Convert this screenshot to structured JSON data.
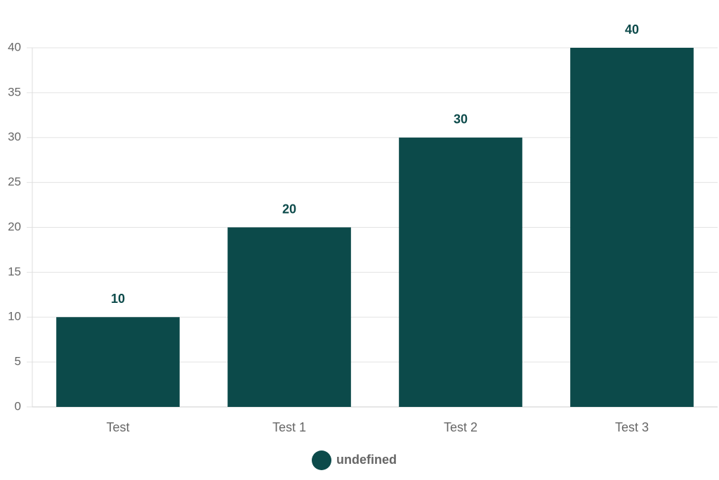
{
  "chart_data": {
    "type": "bar",
    "categories": [
      "Test",
      "Test 1",
      "Test 2",
      "Test 3"
    ],
    "series": [
      {
        "name": "undefined",
        "color": "#0c4a4a",
        "values": [
          10,
          20,
          30,
          40
        ]
      }
    ],
    "ylim": [
      0,
      40
    ],
    "yticks": [
      0,
      5,
      10,
      15,
      20,
      25,
      30,
      35,
      40
    ],
    "grid": true,
    "data_labels": true,
    "legend": "bottom"
  }
}
